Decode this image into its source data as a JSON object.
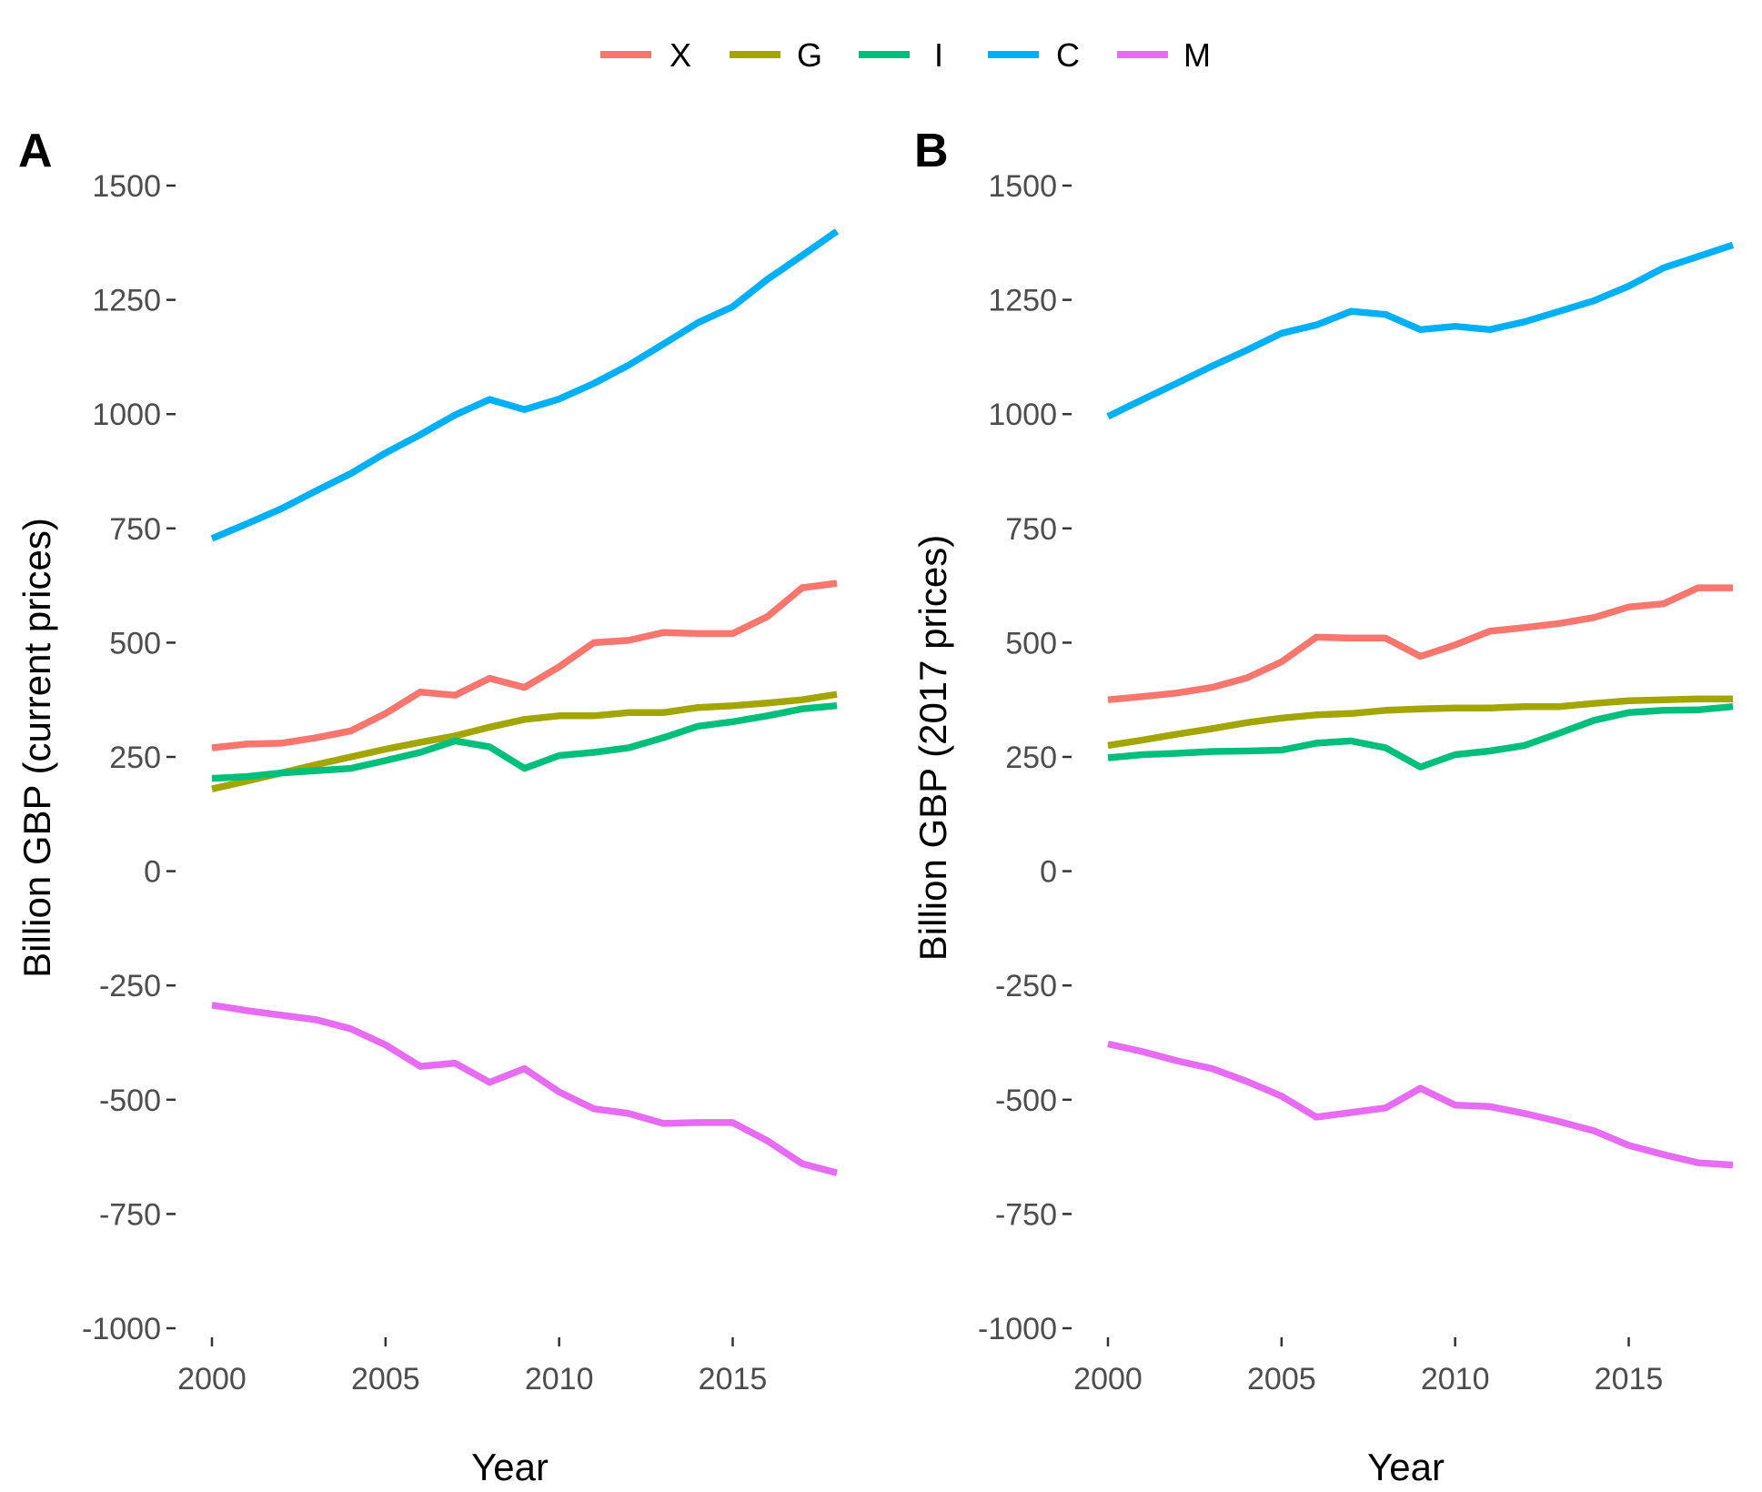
{
  "legend": {
    "placement": "top",
    "items": [
      {
        "key": "X",
        "label": "X",
        "color": "#F8766D"
      },
      {
        "key": "G",
        "label": "G",
        "color": "#A3A500"
      },
      {
        "key": "I",
        "label": "I",
        "color": "#00BF7D"
      },
      {
        "key": "C",
        "label": "C",
        "color": "#00B0F6"
      },
      {
        "key": "M",
        "label": "M",
        "color": "#E76BF3"
      }
    ]
  },
  "chart_data": [
    {
      "type": "line",
      "panel_label": "A",
      "xlabel": "Year",
      "ylabel": "Billion GBP (current prices)",
      "xlim": [
        2000,
        2018
      ],
      "ylim": [
        -1000,
        1500
      ],
      "xticks": [
        2000,
        2005,
        2010,
        2015
      ],
      "yticks": [
        -1000,
        -750,
        -500,
        -250,
        0,
        250,
        500,
        750,
        1000,
        1250,
        1500
      ],
      "grid": false,
      "x": [
        2000,
        2001,
        2002,
        2003,
        2004,
        2005,
        2006,
        2007,
        2008,
        2009,
        2010,
        2011,
        2012,
        2013,
        2014,
        2015,
        2016,
        2017,
        2018
      ],
      "series": [
        {
          "name": "X",
          "color": "#F8766D",
          "values": [
            270,
            278,
            280,
            292,
            307,
            345,
            392,
            385,
            422,
            402,
            447,
            500,
            505,
            522,
            520,
            520,
            557,
            620,
            630
          ]
        },
        {
          "name": "G",
          "color": "#A3A500",
          "values": [
            180,
            197,
            215,
            233,
            250,
            267,
            282,
            296,
            315,
            332,
            340,
            340,
            347,
            347,
            358,
            362,
            368,
            375,
            387
          ]
        },
        {
          "name": "I",
          "color": "#00BF7D",
          "values": [
            203,
            207,
            215,
            220,
            225,
            242,
            260,
            285,
            272,
            225,
            253,
            260,
            270,
            292,
            317,
            327,
            340,
            355,
            362
          ]
        },
        {
          "name": "C",
          "color": "#00B0F6",
          "values": [
            728,
            760,
            793,
            832,
            870,
            915,
            955,
            998,
            1032,
            1010,
            1033,
            1067,
            1107,
            1153,
            1200,
            1235,
            1295,
            1347,
            1400
          ]
        },
        {
          "name": "M",
          "color": "#E76BF3",
          "values": [
            -293,
            -305,
            -315,
            -325,
            -345,
            -380,
            -427,
            -420,
            -462,
            -432,
            -483,
            -520,
            -530,
            -552,
            -550,
            -550,
            -590,
            -640,
            -660
          ]
        }
      ]
    },
    {
      "type": "line",
      "panel_label": "B",
      "xlabel": "Year",
      "ylabel": "Billion GBP (2017 prices)",
      "xlim": [
        2000,
        2018
      ],
      "ylim": [
        -1000,
        1500
      ],
      "xticks": [
        2000,
        2005,
        2010,
        2015
      ],
      "yticks": [
        -1000,
        -750,
        -500,
        -250,
        0,
        250,
        500,
        750,
        1000,
        1250,
        1500
      ],
      "grid": false,
      "x": [
        2000,
        2001,
        2002,
        2003,
        2004,
        2005,
        2006,
        2007,
        2008,
        2009,
        2010,
        2011,
        2012,
        2013,
        2014,
        2015,
        2016,
        2017,
        2018
      ],
      "series": [
        {
          "name": "X",
          "color": "#F8766D",
          "values": [
            375,
            382,
            390,
            402,
            423,
            458,
            512,
            510,
            510,
            470,
            495,
            525,
            533,
            542,
            555,
            578,
            585,
            620,
            620
          ]
        },
        {
          "name": "G",
          "color": "#A3A500",
          "values": [
            275,
            287,
            300,
            312,
            325,
            335,
            342,
            345,
            352,
            355,
            357,
            357,
            360,
            360,
            367,
            373,
            375,
            377,
            377
          ]
        },
        {
          "name": "I",
          "color": "#00BF7D",
          "values": [
            248,
            255,
            258,
            262,
            263,
            265,
            280,
            285,
            270,
            228,
            255,
            263,
            275,
            302,
            330,
            347,
            352,
            353,
            360
          ]
        },
        {
          "name": "C",
          "color": "#00B0F6",
          "values": [
            995,
            1032,
            1068,
            1105,
            1140,
            1177,
            1195,
            1225,
            1218,
            1185,
            1192,
            1185,
            1202,
            1225,
            1248,
            1280,
            1320,
            1345,
            1370
          ]
        },
        {
          "name": "M",
          "color": "#E76BF3",
          "values": [
            -378,
            -395,
            -415,
            -432,
            -460,
            -492,
            -538,
            -528,
            -518,
            -475,
            -512,
            -515,
            -530,
            -548,
            -568,
            -600,
            -620,
            -638,
            -643
          ]
        }
      ]
    }
  ]
}
